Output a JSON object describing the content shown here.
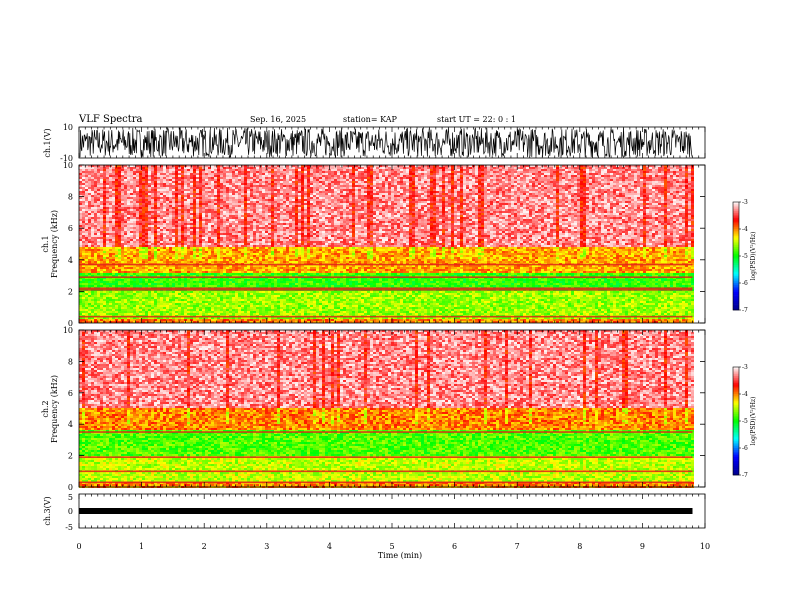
{
  "header": {
    "title": "VLF Spectra",
    "date": "Sep. 16, 2025",
    "station": "station= KAP",
    "start": "start  UT  =   22: 0  : 1"
  },
  "colorbar": {
    "label": "log(PSD)(V²/Hz)",
    "ticks": [
      "-3",
      "-4",
      "-5",
      "-6",
      "-7"
    ]
  },
  "chart_data": [
    {
      "type": "line",
      "name": "ch1-waveform",
      "ylabel": "ch.1(V)",
      "ylim": [
        -10,
        10
      ],
      "yticks": [
        "10",
        "-10"
      ],
      "xlim": [
        0,
        10
      ],
      "description_values": {
        "typical_range": [
          -9,
          9
        ]
      }
    },
    {
      "type": "heatmap",
      "name": "ch1-spectrogram",
      "ylabel_line1": "ch.1",
      "ylabel_line2": "Frequency (kHz)",
      "xlim": [
        0,
        10
      ],
      "ylim": [
        0,
        10
      ],
      "yticks": [
        "0",
        "2",
        "4",
        "6",
        "8",
        "10"
      ],
      "data_end_min": 9.8,
      "colorscale": {
        "min": -7,
        "max": -3,
        "colors": [
          "#00008b",
          "#0000ff",
          "#00ffff",
          "#00ff00",
          "#ffff00",
          "#ff0000",
          "#ffffff"
        ]
      },
      "bands": [
        {
          "freq_khz": [
            0,
            0.3
          ],
          "log_psd": -4.0
        },
        {
          "freq_khz": [
            0.3,
            2.0
          ],
          "log_psd": -4.6
        },
        {
          "freq_khz": [
            2.0,
            3.2
          ],
          "log_psd": -4.9
        },
        {
          "freq_khz": [
            3.2,
            4.8
          ],
          "log_psd": -4.1
        },
        {
          "freq_khz": [
            4.8,
            10
          ],
          "log_psd": -3.3
        }
      ],
      "lines_khz": [
        3.7,
        2.9,
        2.2,
        2.1,
        0.4
      ]
    },
    {
      "type": "heatmap",
      "name": "ch2-spectrogram",
      "ylabel_line1": "ch.2",
      "ylabel_line2": "Frequency (kHz)",
      "xlim": [
        0,
        10
      ],
      "ylim": [
        0,
        10
      ],
      "yticks": [
        "0",
        "2",
        "4",
        "6",
        "8",
        "10"
      ],
      "data_end_min": 9.8,
      "colorscale": {
        "min": -7,
        "max": -3,
        "colors": [
          "#00008b",
          "#0000ff",
          "#00ffff",
          "#00ff00",
          "#ffff00",
          "#ff0000",
          "#ffffff"
        ]
      },
      "bands": [
        {
          "freq_khz": [
            0,
            0.3
          ],
          "log_psd": -4.0
        },
        {
          "freq_khz": [
            0.3,
            2.0
          ],
          "log_psd": -4.5
        },
        {
          "freq_khz": [
            2.0,
            3.6
          ],
          "log_psd": -4.8
        },
        {
          "freq_khz": [
            3.6,
            5.0
          ],
          "log_psd": -4.0
        },
        {
          "freq_khz": [
            5.0,
            10
          ],
          "log_psd": -3.3
        }
      ],
      "lines_khz": [
        3.5,
        1.9,
        1.0,
        0.3
      ]
    },
    {
      "type": "line",
      "name": "ch3-waveform",
      "ylabel": "ch.3(V)",
      "ylim": [
        -5,
        5
      ],
      "yticks": [
        "5",
        "0",
        "-5"
      ],
      "xlim": [
        0,
        10
      ],
      "description_values": {
        "center": -0.3,
        "amplitude": 0.5
      },
      "xlabel": "Time (min)",
      "xticks": [
        "0",
        "1",
        "2",
        "3",
        "4",
        "5",
        "6",
        "7",
        "8",
        "9",
        "10"
      ]
    }
  ]
}
